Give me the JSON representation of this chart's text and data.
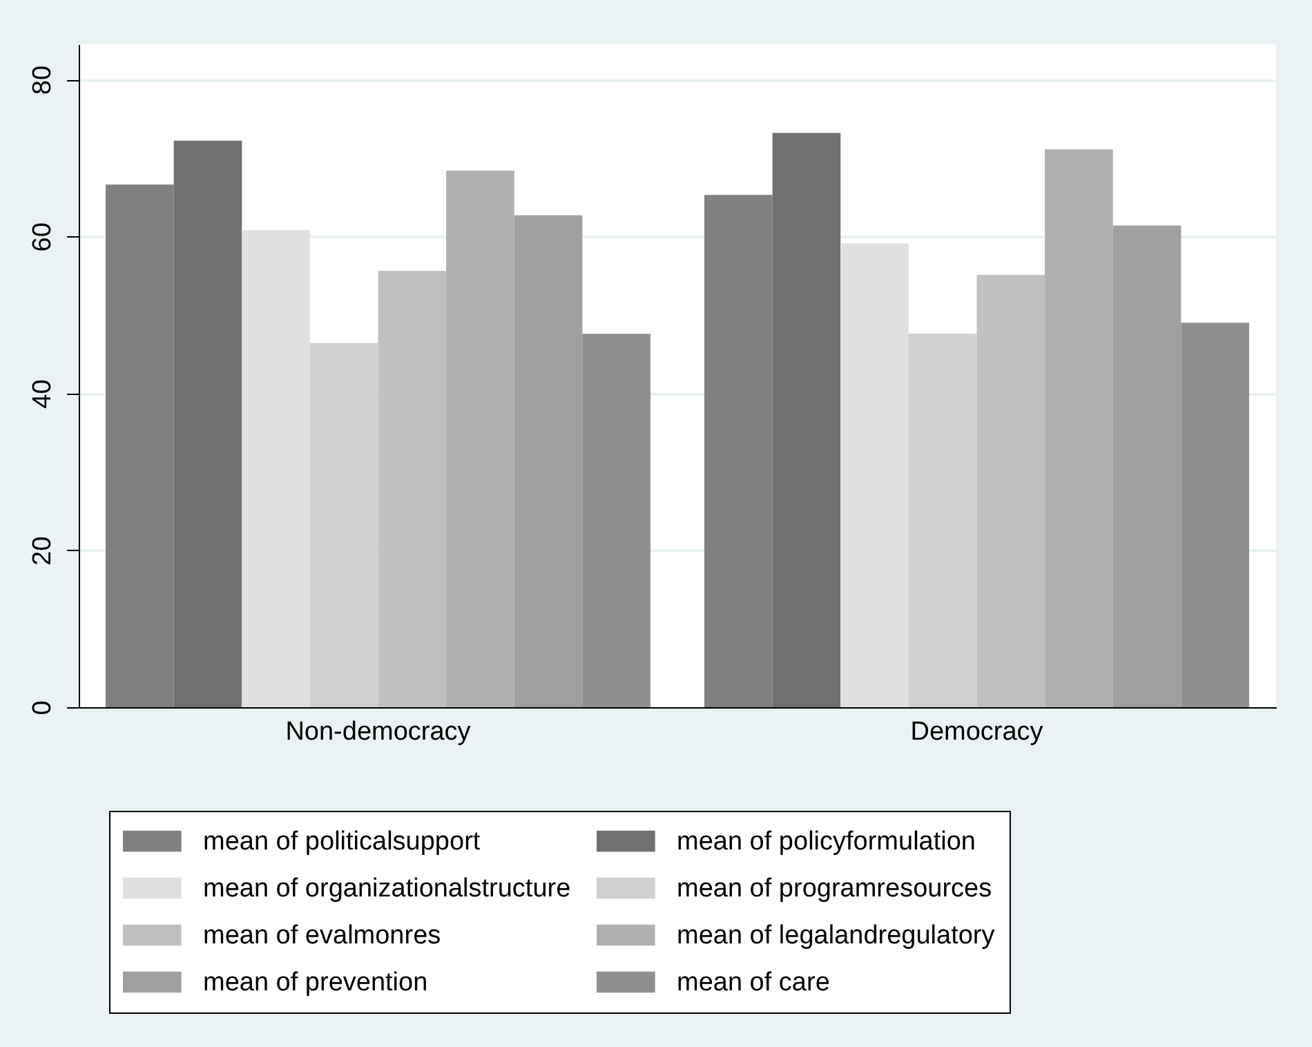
{
  "chart_data": {
    "type": "bar",
    "categories": [
      "Non-democracy",
      "Democracy"
    ],
    "series": [
      {
        "name": "mean of politicalsupport",
        "color": "#808080",
        "values": [
          66.6,
          65.3
        ]
      },
      {
        "name": "mean of policyformulation",
        "color": "#707070",
        "values": [
          72.2,
          73.2
        ]
      },
      {
        "name": "mean of organizationalstructure",
        "color": "#e0e0e0",
        "values": [
          60.8,
          59.1
        ]
      },
      {
        "name": "mean of programresources",
        "color": "#d0d0d0",
        "values": [
          46.4,
          47.6
        ]
      },
      {
        "name": "mean of evalmonres",
        "color": "#c0c0c0",
        "values": [
          55.6,
          55.1
        ]
      },
      {
        "name": "mean of legalandregulatory",
        "color": "#b0b0b0",
        "values": [
          68.4,
          71.1
        ]
      },
      {
        "name": "mean of prevention",
        "color": "#a0a0a0",
        "values": [
          62.7,
          61.4
        ]
      },
      {
        "name": "mean of care",
        "color": "#909090",
        "values": [
          47.6,
          49.0
        ]
      }
    ],
    "ylim": [
      0,
      84.5
    ],
    "yticks": [
      0,
      20,
      40,
      60,
      80
    ],
    "grid": "y",
    "legend": "bottom"
  }
}
